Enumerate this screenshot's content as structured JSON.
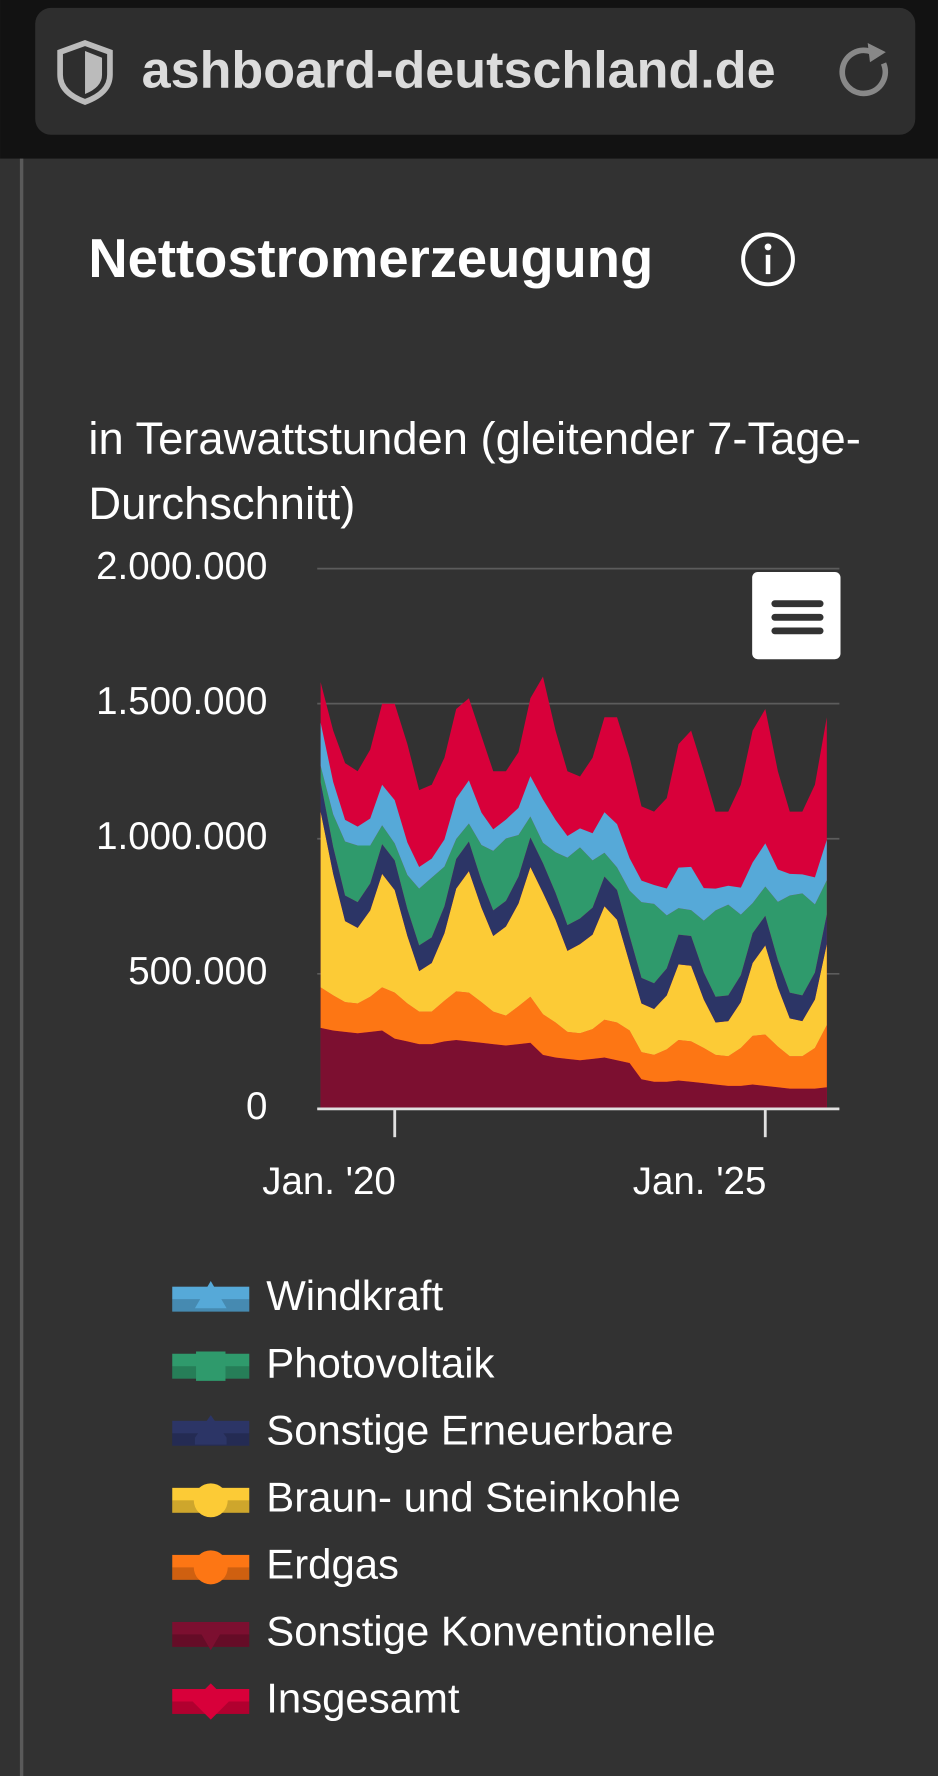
{
  "browser": {
    "url": "ashboard-deutschland.de"
  },
  "chart_data": {
    "type": "area",
    "title": "Nettostromerzeugung",
    "subtitle": "in Terawattstunden (gleitender 7-Tage-Durchschnitt)",
    "x": [
      2019,
      2019.17,
      2019.33,
      2019.5,
      2019.67,
      2019.83,
      2020,
      2020.17,
      2020.33,
      2020.5,
      2020.67,
      2020.83,
      2021,
      2021.17,
      2021.33,
      2021.5,
      2021.67,
      2021.83,
      2022,
      2022.17,
      2022.33,
      2022.5,
      2022.67,
      2022.83,
      2023,
      2023.17,
      2023.33,
      2023.5,
      2023.67,
      2023.83,
      2024,
      2024.17,
      2024.33,
      2024.5,
      2024.67,
      2024.83,
      2025,
      2025.17,
      2025.33,
      2025.5,
      2025.67,
      2025.83
    ],
    "xlim": [
      2019,
      2026
    ],
    "xticks": [
      {
        "value": 2020,
        "label": "Jan. '20"
      },
      {
        "value": 2025,
        "label": "Jan. '25"
      }
    ],
    "ylim": [
      0,
      2000000
    ],
    "yticks": [
      0,
      {
        "value": 500000,
        "label": "500.000"
      },
      {
        "value": 1000000,
        "label": "1.000.000"
      },
      {
        "value": 1500000,
        "label": "1.500.000"
      },
      {
        "value": 2000000,
        "label": "2.000.000"
      }
    ],
    "grid": true,
    "stacked": true,
    "series": [
      {
        "name": "Windkraft",
        "color": "#56a9d8",
        "marker": "triangle",
        "values": [
          160000,
          120000,
          80000,
          70000,
          100000,
          150000,
          160000,
          120000,
          80000,
          70000,
          100000,
          150000,
          160000,
          120000,
          80000,
          70000,
          100000,
          150000,
          160000,
          120000,
          80000,
          70000,
          100000,
          150000,
          160000,
          120000,
          80000,
          70000,
          100000,
          150000,
          160000,
          120000,
          80000,
          70000,
          100000,
          150000,
          160000,
          120000,
          80000,
          70000,
          100000,
          150000
        ]
      },
      {
        "name": "Photovoltaik",
        "color": "#2f9a6c",
        "marker": "square",
        "values": [
          60000,
          120000,
          200000,
          210000,
          140000,
          70000,
          63000,
          126000,
          210000,
          221000,
          147000,
          74000,
          66000,
          132000,
          220000,
          231000,
          154000,
          77000,
          75000,
          150000,
          250000,
          263000,
          175000,
          88000,
          84000,
          168000,
          280000,
          294000,
          196000,
          98000,
          96000,
          192000,
          320000,
          336000,
          224000,
          112000,
          108000,
          216000,
          360000,
          378000,
          252000,
          126000
        ]
      },
      {
        "name": "Sonstige Erneuerbare",
        "color": "#2c3566",
        "marker": "cone",
        "values": [
          110000,
          100000,
          95000,
          95000,
          100000,
          110000,
          110000,
          100000,
          95000,
          95000,
          100000,
          110000,
          110000,
          100000,
          95000,
          95000,
          100000,
          110000,
          110000,
          100000,
          95000,
          95000,
          100000,
          110000,
          110000,
          100000,
          95000,
          95000,
          100000,
          110000,
          110000,
          100000,
          95000,
          95000,
          100000,
          110000,
          110000,
          100000,
          95000,
          95000,
          100000,
          110000
        ]
      },
      {
        "name": "Braun- und Steinkohle",
        "color": "#fccb36",
        "marker": "circle",
        "values": [
          650000,
          450000,
          300000,
          280000,
          320000,
          420000,
          380000,
          250000,
          150000,
          180000,
          250000,
          380000,
          450000,
          350000,
          280000,
          330000,
          380000,
          480000,
          450000,
          380000,
          300000,
          330000,
          350000,
          420000,
          380000,
          250000,
          180000,
          170000,
          200000,
          280000,
          280000,
          180000,
          120000,
          130000,
          170000,
          270000,
          330000,
          220000,
          140000,
          130000,
          180000,
          300000
        ]
      },
      {
        "name": "Erdgas",
        "color": "#fd7614",
        "marker": "circle",
        "values": [
          150000,
          130000,
          110000,
          110000,
          130000,
          160000,
          170000,
          140000,
          120000,
          120000,
          150000,
          180000,
          180000,
          150000,
          120000,
          110000,
          140000,
          170000,
          150000,
          130000,
          100000,
          100000,
          110000,
          140000,
          140000,
          120000,
          100000,
          100000,
          120000,
          150000,
          150000,
          130000,
          110000,
          110000,
          140000,
          180000,
          190000,
          150000,
          120000,
          120000,
          150000,
          230000
        ]
      },
      {
        "name": "Sonstige Konventionelle",
        "color": "#7c0f30",
        "marker": "triangle-down",
        "values": [
          300000,
          290000,
          285000,
          280000,
          285000,
          290000,
          260000,
          250000,
          240000,
          240000,
          250000,
          255000,
          250000,
          245000,
          240000,
          235000,
          240000,
          245000,
          200000,
          190000,
          185000,
          180000,
          185000,
          190000,
          180000,
          170000,
          110000,
          100000,
          100000,
          105000,
          100000,
          95000,
          90000,
          85000,
          85000,
          90000,
          85000,
          80000,
          75000,
          75000,
          75000,
          80000
        ]
      },
      {
        "name": "Insgesamt",
        "color": "#d8003a",
        "marker": "diamond",
        "stack": false,
        "values": [
          1580000,
          1400000,
          1280000,
          1250000,
          1330000,
          1500000,
          1500000,
          1350000,
          1180000,
          1200000,
          1300000,
          1480000,
          1520000,
          1380000,
          1250000,
          1250000,
          1320000,
          1520000,
          1600000,
          1400000,
          1250000,
          1230000,
          1300000,
          1450000,
          1450000,
          1300000,
          1120000,
          1100000,
          1150000,
          1350000,
          1400000,
          1250000,
          1100000,
          1100000,
          1200000,
          1400000,
          1480000,
          1250000,
          1100000,
          1100000,
          1200000,
          1450000
        ]
      }
    ]
  }
}
